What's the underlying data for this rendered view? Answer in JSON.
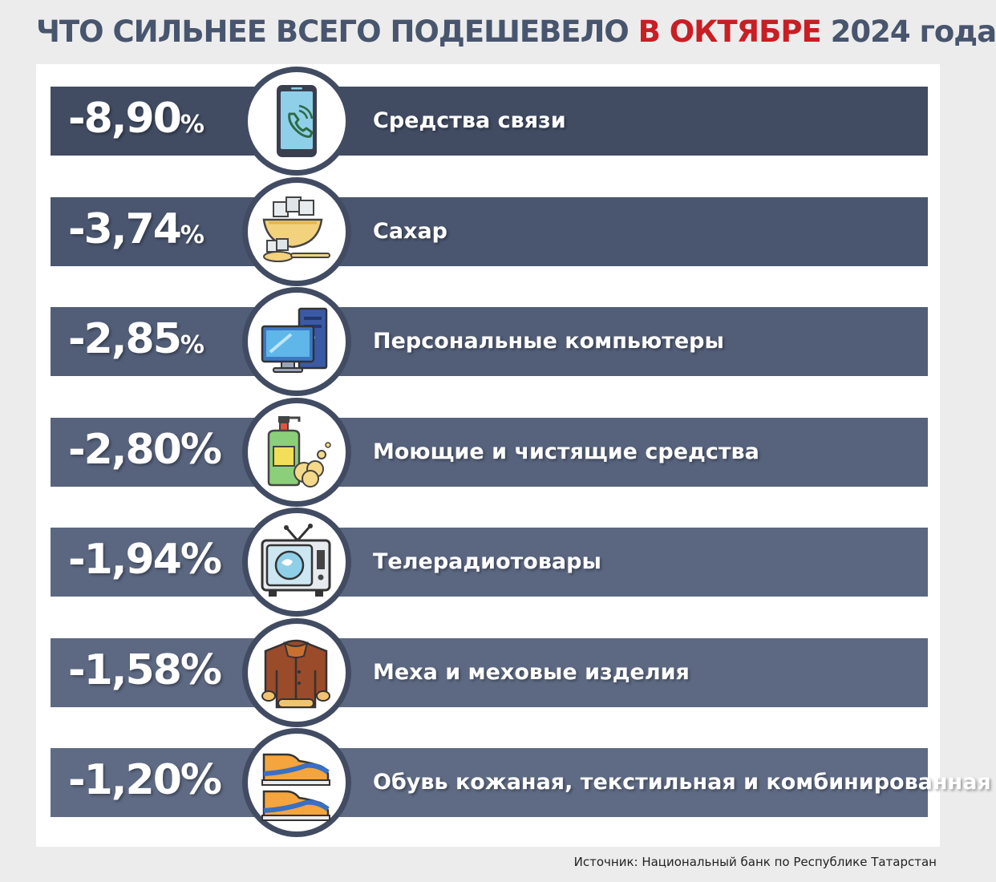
{
  "title": {
    "part1": "ЧТО СИЛЬНЕЕ ВСЕГО ПОДЕШЕВЕЛО ",
    "highlight": "В ОКТЯБРЕ",
    "part2": " 2024 года"
  },
  "source": "Источник: Национальный банк по Республике Татарстан",
  "colors": {
    "title": "#48556e",
    "highlight": "#c81e24",
    "bars": [
      "#414c63",
      "#4a5670",
      "#525e78",
      "#57637d",
      "#5b6781",
      "#5d6983",
      "#5f6b85"
    ]
  },
  "chart_data": {
    "type": "bar",
    "categories": [
      "Средства связи",
      "Сахар",
      "Персональные компьютеры",
      "Моющие и чистящие средства",
      "Телерадиотовары",
      "Меха и меховые изделия",
      "Обувь кожаная, текстильная и комбинированная"
    ],
    "values": [
      -8.9,
      -3.74,
      -2.85,
      -2.8,
      -1.94,
      -1.58,
      -1.2
    ],
    "value_labels": [
      "-8,90",
      "-3,74",
      "-2,85",
      "-2,80",
      "-1,94",
      "-1,58",
      "-1,20"
    ],
    "unit": "%",
    "icons": [
      "smartphone-icon",
      "sugar-bowl-icon",
      "computer-icon",
      "detergent-icon",
      "tv-icon",
      "fur-coat-icon",
      "shoes-icon"
    ]
  }
}
